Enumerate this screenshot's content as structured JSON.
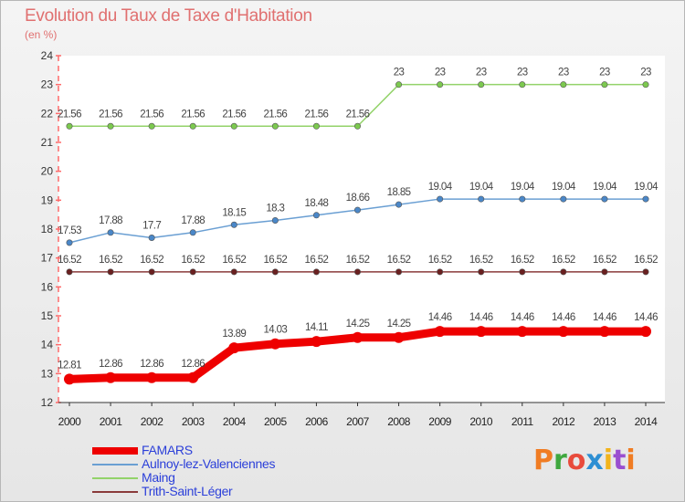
{
  "title": "Evolution du Taux de Taxe d'Habitation",
  "subtitle": "(en %)",
  "brand": [
    "P",
    "r",
    "o",
    "x",
    "i",
    "t",
    "i"
  ],
  "colors": {
    "brand": [
      "#f07c23",
      "#3fa83f",
      "#e84b3c",
      "#2d8fd3",
      "#f2b41b",
      "#9a4fd0",
      "#f07c23"
    ]
  },
  "chart_data": {
    "type": "line",
    "title": "Evolution du Taux de Taxe d'Habitation",
    "subtitle": "(en %)",
    "xlabel": "",
    "ylabel": "(en %)",
    "ylim": [
      12,
      24
    ],
    "yticks": [
      12,
      13,
      14,
      15,
      16,
      17,
      18,
      19,
      20,
      21,
      22,
      23,
      24
    ],
    "grid": false,
    "legend_position": "bottom-left",
    "x": [
      "2000",
      "2001",
      "2002",
      "2003",
      "2004",
      "2005",
      "2006",
      "2007",
      "2008",
      "2009",
      "2010",
      "2011",
      "2012",
      "2013",
      "2014"
    ],
    "series": [
      {
        "name": "Maing",
        "color": "#93d36a",
        "marker": "#7cc94f",
        "values": [
          21.56,
          21.56,
          21.56,
          21.56,
          21.56,
          21.56,
          21.56,
          21.56,
          23,
          23,
          23,
          23,
          23,
          23,
          23
        ],
        "labels": [
          "21.56",
          "21.56",
          "21.56",
          "21.56",
          "21.56",
          "21.56",
          "21.56",
          "21.56",
          "23",
          "23",
          "23",
          "23",
          "23",
          "23",
          "23"
        ]
      },
      {
        "name": "Aulnoy-lez-Valenciennes",
        "color": "#6a9fd3",
        "marker": "#4a87c8",
        "values": [
          17.53,
          17.88,
          17.7,
          17.88,
          18.15,
          18.3,
          18.48,
          18.66,
          18.85,
          19.04,
          19.04,
          19.04,
          19.04,
          19.04,
          19.04
        ],
        "labels": [
          "17.53",
          "17.88",
          "17.7",
          "17.88",
          "18.15",
          "18.3",
          "18.48",
          "18.66",
          "18.85",
          "19.04",
          "19.04",
          "19.04",
          "19.04",
          "19.04",
          "19.04"
        ]
      },
      {
        "name": "Trith-Saint-Léger",
        "color": "#8a3a3a",
        "marker": "#6a2020",
        "values": [
          16.52,
          16.52,
          16.52,
          16.52,
          16.52,
          16.52,
          16.52,
          16.52,
          16.52,
          16.52,
          16.52,
          16.52,
          16.52,
          16.52,
          16.52
        ],
        "labels": [
          "16.52",
          "16.52",
          "16.52",
          "16.52",
          "16.52",
          "16.52",
          "16.52",
          "16.52",
          "16.52",
          "16.52",
          "16.52",
          "16.52",
          "16.52",
          "16.52",
          "16.52"
        ]
      },
      {
        "name": "FAMARS",
        "color": "#ee0000",
        "marker": "#ee0000",
        "bold": true,
        "values": [
          12.81,
          12.86,
          12.86,
          12.86,
          13.89,
          14.03,
          14.11,
          14.25,
          14.25,
          14.46,
          14.46,
          14.46,
          14.46,
          14.46,
          14.46
        ],
        "labels": [
          "12.81",
          "12.86",
          "12.86",
          "12.86",
          "13.89",
          "14.03",
          "14.11",
          "14.25",
          "14.25",
          "14.46",
          "14.46",
          "14.46",
          "14.46",
          "14.46",
          "14.46"
        ]
      }
    ],
    "legend_order": [
      "FAMARS",
      "Aulnoy-lez-Valenciennes",
      "Maing",
      "Trith-Saint-Léger"
    ]
  }
}
